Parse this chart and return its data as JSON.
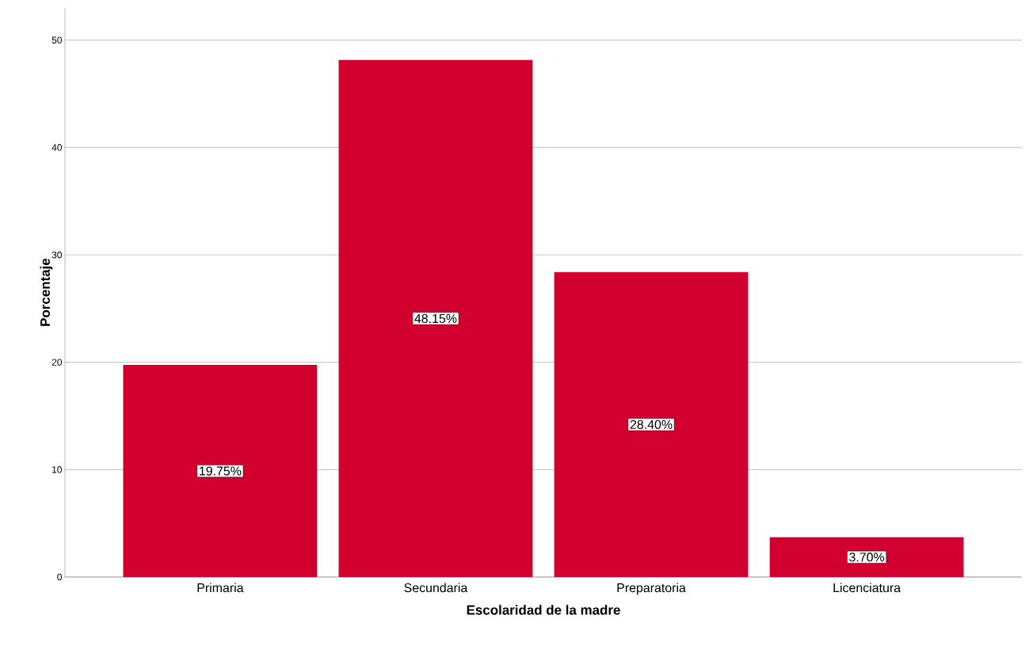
{
  "chart_data": {
    "type": "bar",
    "xlabel": "Escolaridad de la madre",
    "ylabel": "Porcentaje",
    "categories": [
      "Primaria",
      "Secundaria",
      "Preparatoria",
      "Licenciatura"
    ],
    "values": [
      19.75,
      48.15,
      28.4,
      3.7
    ],
    "value_labels": [
      "19.75%",
      "48.15%",
      "28.40%",
      "3.70%"
    ],
    "color": "#d2002e",
    "ylim": [
      0,
      53
    ],
    "yticks": [
      0,
      10,
      20,
      30,
      40,
      50
    ],
    "grid": "y"
  }
}
